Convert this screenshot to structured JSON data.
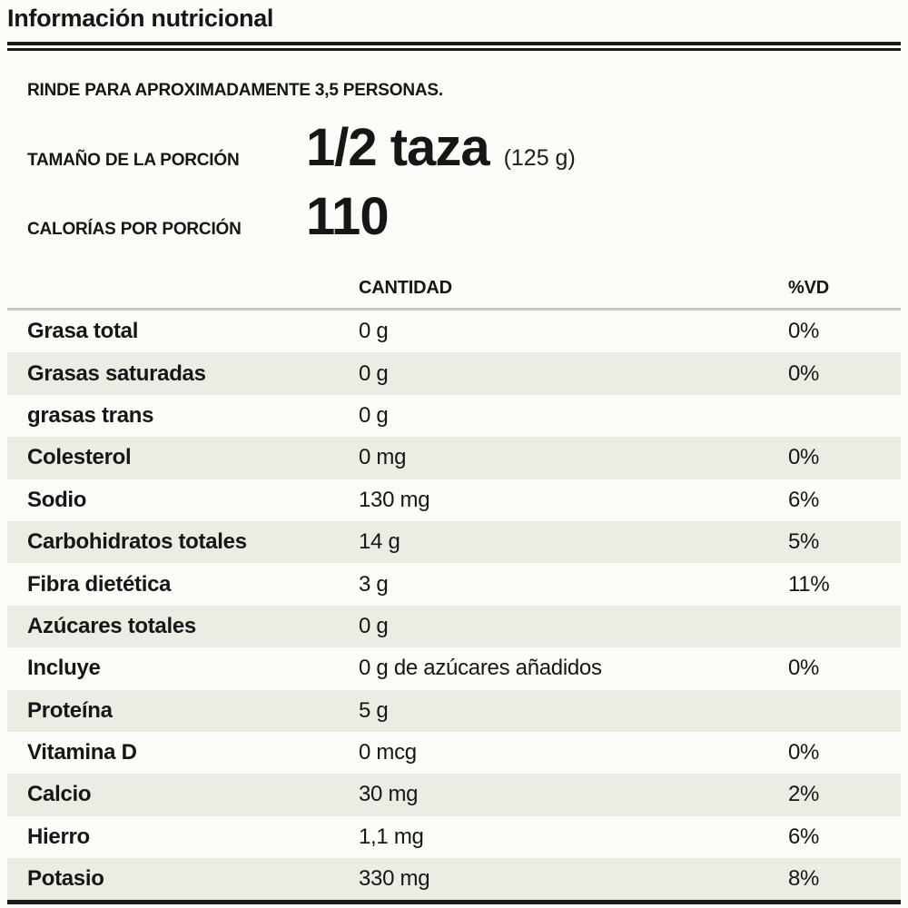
{
  "header": {
    "title": "Información nutricional"
  },
  "summary": {
    "servings_note": "RINDE PARA APROXIMADAMENTE 3,5 PERSONAS.",
    "serving_size_label": "TAMAÑO DE LA PORCIÓN",
    "serving_size_value": "1/2 taza",
    "serving_size_weight": "(125 g)",
    "calories_label": "CALORÍAS POR PORCIÓN",
    "calories_value": "110"
  },
  "table": {
    "columns": {
      "amount": "CANTIDAD",
      "dv": "%VD"
    },
    "rows": [
      {
        "label": "Grasa total",
        "amount": "0 g",
        "dv": "0%"
      },
      {
        "label": "Grasas saturadas",
        "amount": "0 g",
        "dv": "0%"
      },
      {
        "label": "grasas trans",
        "amount": "0 g",
        "dv": ""
      },
      {
        "label": "Colesterol",
        "amount": "0 mg",
        "dv": "0%"
      },
      {
        "label": "Sodio",
        "amount": "130 mg",
        "dv": "6%"
      },
      {
        "label": "Carbohidratos totales",
        "amount": "14 g",
        "dv": "5%"
      },
      {
        "label": "Fibra dietética",
        "amount": "3 g",
        "dv": "11%"
      },
      {
        "label": "Azúcares totales",
        "amount": "0 g",
        "dv": ""
      },
      {
        "label": "Incluye",
        "amount": "0 g de azúcares añadidos",
        "dv": "0%"
      },
      {
        "label": "Proteína",
        "amount": "5 g",
        "dv": ""
      },
      {
        "label": "Vitamina D",
        "amount": "0 mcg",
        "dv": "0%"
      },
      {
        "label": "Calcio",
        "amount": "30 mg",
        "dv": "2%"
      },
      {
        "label": "Hierro",
        "amount": "1,1 mg",
        "dv": "6%"
      },
      {
        "label": "Potasio",
        "amount": "330 mg",
        "dv": "8%"
      }
    ]
  },
  "colors": {
    "page_bg": "#fcfbf8",
    "text": "#161616",
    "row_shade": "#ecebe4",
    "rule_dark": "#1a1a1a",
    "rule_light": "#c8c7c2"
  }
}
